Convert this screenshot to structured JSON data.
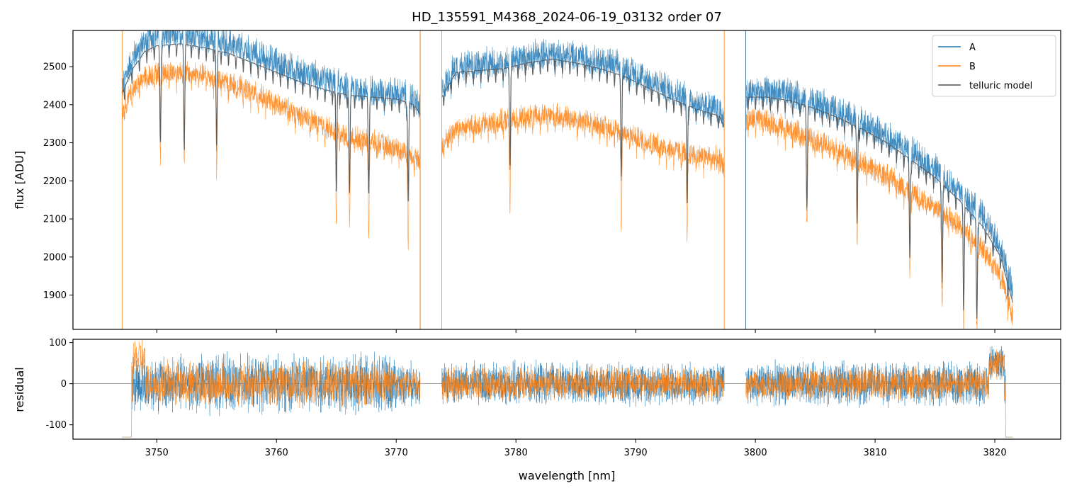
{
  "chart_data": [
    {
      "type": "line",
      "panel": "top",
      "title": "HD_135591_M4368_2024-06-19_03132  order 07",
      "xlabel": "",
      "ylabel": "flux [ADU]",
      "xlim": [
        3743.0,
        3825.5
      ],
      "ylim": [
        1810,
        2595
      ],
      "xticks": [
        3750,
        3760,
        3770,
        3780,
        3790,
        3800,
        3810,
        3820
      ],
      "yticks": [
        1900,
        2000,
        2100,
        2200,
        2300,
        2400,
        2500
      ],
      "legend": {
        "placement": "top-right",
        "entries": [
          "A",
          "B",
          "telluric model"
        ]
      },
      "colors": {
        "A": "#1f77b4",
        "B": "#ff7f0e",
        "telluric model": "#555555"
      },
      "grid": false,
      "series": [
        {
          "name": "A",
          "segments": [
            {
              "x": [
                3747.1,
                3748,
                3749,
                3750,
                3752,
                3754,
                3756,
                3758,
                3760,
                3762,
                3764,
                3766,
                3768,
                3770,
                3771.5,
                3772.0
              ],
              "y": [
                2440,
                2520,
                2560,
                2575,
                2580,
                2570,
                2555,
                2530,
                2505,
                2480,
                2460,
                2440,
                2430,
                2425,
                2410,
                2380
              ]
            },
            {
              "x": [
                3773.8,
                3775,
                3777,
                3779,
                3781,
                3783,
                3785,
                3787,
                3789,
                3791,
                3793,
                3795,
                3797,
                3797.4
              ],
              "y": [
                2430,
                2495,
                2500,
                2505,
                2520,
                2530,
                2520,
                2510,
                2490,
                2460,
                2430,
                2400,
                2380,
                2350
              ]
            },
            {
              "x": [
                3799.2,
                3801,
                3803,
                3805,
                3807,
                3809,
                3811,
                3813,
                3815,
                3817,
                3819,
                3820.5,
                3821.5
              ],
              "y": [
                2425,
                2430,
                2420,
                2400,
                2375,
                2345,
                2310,
                2270,
                2225,
                2170,
                2100,
                2020,
                1900
              ]
            }
          ]
        },
        {
          "name": "B",
          "segments": [
            {
              "x": [
                3747.1,
                3748,
                3749,
                3750,
                3752,
                3754,
                3756,
                3758,
                3760,
                3762,
                3764,
                3766,
                3768,
                3770,
                3771.5,
                3772.0
              ],
              "y": [
                2380,
                2440,
                2470,
                2480,
                2485,
                2475,
                2455,
                2430,
                2400,
                2370,
                2340,
                2315,
                2300,
                2285,
                2265,
                2240
              ]
            },
            {
              "x": [
                3773.8,
                3775,
                3777,
                3779,
                3781,
                3783,
                3785,
                3787,
                3789,
                3791,
                3793,
                3795,
                3797,
                3797.4
              ],
              "y": [
                2290,
                2335,
                2345,
                2355,
                2365,
                2370,
                2360,
                2345,
                2325,
                2300,
                2280,
                2265,
                2255,
                2230
              ]
            },
            {
              "x": [
                3799.2,
                3801,
                3803,
                3805,
                3807,
                3809,
                3811,
                3813,
                3815,
                3817,
                3819,
                3820.5,
                3821.5
              ],
              "y": [
                2360,
                2355,
                2330,
                2305,
                2275,
                2245,
                2210,
                2170,
                2130,
                2080,
                2020,
                1950,
                1840
              ]
            }
          ]
        },
        {
          "name": "telluric model",
          "segments": [
            {
              "x": [
                3747.1,
                3748,
                3749,
                3750,
                3752,
                3754,
                3756,
                3758,
                3760,
                3762,
                3764,
                3766,
                3768,
                3770,
                3771.5,
                3772.0
              ],
              "y": [
                2430,
                2495,
                2540,
                2555,
                2560,
                2550,
                2535,
                2510,
                2485,
                2460,
                2440,
                2425,
                2420,
                2415,
                2400,
                2375
              ]
            },
            {
              "x": [
                3773.8,
                3775,
                3777,
                3779,
                3781,
                3783,
                3785,
                3787,
                3789,
                3791,
                3793,
                3795,
                3797,
                3797.4
              ],
              "y": [
                2420,
                2485,
                2490,
                2495,
                2510,
                2520,
                2510,
                2495,
                2475,
                2445,
                2415,
                2390,
                2370,
                2340
              ]
            },
            {
              "x": [
                3799.2,
                3801,
                3803,
                3805,
                3807,
                3809,
                3811,
                3813,
                3815,
                3817,
                3819,
                3820.5,
                3821.5
              ],
              "y": [
                2420,
                2420,
                2410,
                2390,
                2365,
                2335,
                2300,
                2255,
                2210,
                2150,
                2080,
                2000,
                1880
              ]
            }
          ]
        }
      ]
    },
    {
      "type": "line",
      "panel": "bottom",
      "title": "",
      "xlabel": "wavelength [nm]",
      "ylabel": "residual",
      "xlim": [
        3743.0,
        3825.5
      ],
      "ylim": [
        -135,
        108
      ],
      "xticks": [
        3750,
        3760,
        3770,
        3780,
        3790,
        3800,
        3810,
        3820
      ],
      "yticks": [
        -100,
        0,
        100
      ],
      "zero_line": 0,
      "grid": false,
      "series": [
        {
          "name": "A",
          "segments": [
            [
              3747.1,
              3772.0
            ],
            [
              3773.8,
              3797.4
            ],
            [
              3799.2,
              3821.5
            ]
          ],
          "noise_amplitude": 60
        },
        {
          "name": "B",
          "segments": [
            [
              3747.1,
              3772.0
            ],
            [
              3773.8,
              3797.4
            ],
            [
              3799.2,
              3821.5
            ]
          ],
          "noise_amplitude": 45
        }
      ]
    }
  ]
}
